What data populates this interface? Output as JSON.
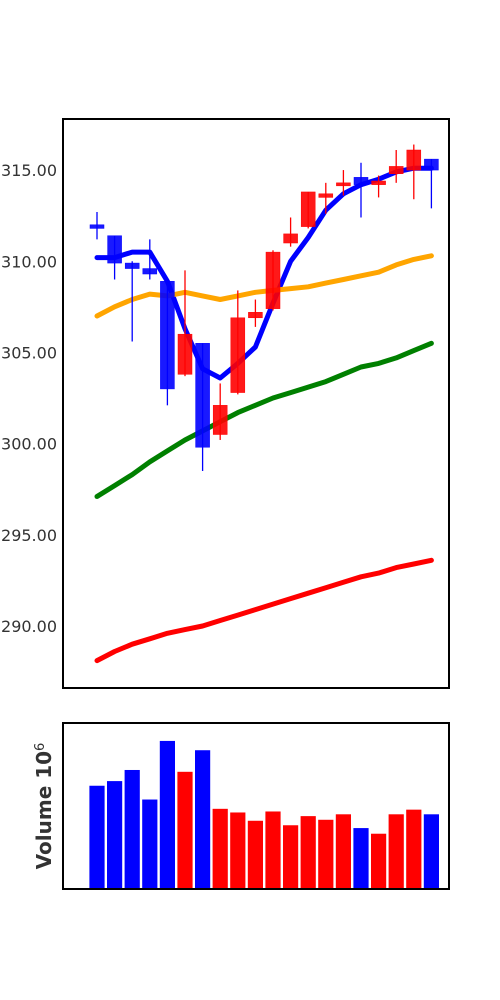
{
  "chart_data": [
    {
      "type": "candlestick",
      "ylim": [
        286.6,
        317.8
      ],
      "yticks": [
        290,
        295,
        300,
        305,
        310,
        315
      ],
      "ytick_labels": [
        "290.00",
        "295.00",
        "300.00",
        "305.00",
        "310.00",
        "315.00"
      ],
      "grid": false,
      "colors": {
        "up": "#ff0000",
        "down": "#0000ff"
      },
      "candles": [
        {
          "open": 312.0,
          "close": 311.8,
          "high": 312.7,
          "low": 311.2
        },
        {
          "open": 311.4,
          "close": 309.9,
          "high": 311.4,
          "low": 309.0
        },
        {
          "open": 309.9,
          "close": 309.6,
          "high": 310.0,
          "low": 305.6
        },
        {
          "open": 309.6,
          "close": 309.3,
          "high": 311.2,
          "low": 309.0
        },
        {
          "open": 308.9,
          "close": 303.0,
          "high": 308.9,
          "low": 302.1
        },
        {
          "open": 303.8,
          "close": 306.0,
          "high": 309.5,
          "low": 303.7
        },
        {
          "open": 305.5,
          "close": 299.8,
          "high": 305.5,
          "low": 298.5
        },
        {
          "open": 300.5,
          "close": 302.1,
          "high": 303.3,
          "low": 300.2
        },
        {
          "open": 302.8,
          "close": 306.9,
          "high": 308.4,
          "low": 302.7
        },
        {
          "open": 306.9,
          "close": 307.2,
          "high": 307.9,
          "low": 306.4
        },
        {
          "open": 307.4,
          "close": 310.5,
          "high": 310.6,
          "low": 307.3
        },
        {
          "open": 311.0,
          "close": 311.5,
          "high": 312.4,
          "low": 310.8
        },
        {
          "open": 311.9,
          "close": 313.8,
          "high": 313.8,
          "low": 311.8
        },
        {
          "open": 313.5,
          "close": 313.7,
          "high": 314.3,
          "low": 312.6
        },
        {
          "open": 314.2,
          "close": 314.3,
          "high": 315.0,
          "low": 313.6
        },
        {
          "open": 314.6,
          "close": 314.2,
          "high": 315.4,
          "low": 312.4
        },
        {
          "open": 314.2,
          "close": 314.4,
          "high": 314.7,
          "low": 313.5
        },
        {
          "open": 314.8,
          "close": 315.2,
          "high": 316.1,
          "low": 314.3
        },
        {
          "open": 315.0,
          "close": 316.1,
          "high": 316.4,
          "low": 313.4
        },
        {
          "open": 315.6,
          "close": 315.0,
          "high": 315.6,
          "low": 312.9
        }
      ],
      "lines": [
        {
          "color": "#0000ff",
          "values": [
            310.2,
            310.2,
            310.5,
            310.5,
            308.9,
            306.3,
            304.1,
            303.6,
            304.4,
            305.3,
            307.7,
            310.0,
            311.3,
            312.8,
            313.7,
            314.2,
            314.5,
            314.9,
            315.1,
            315.1
          ]
        },
        {
          "color": "#ffa500",
          "values": [
            307.0,
            307.5,
            307.9,
            308.2,
            308.1,
            308.3,
            308.1,
            307.9,
            308.1,
            308.3,
            308.4,
            308.5,
            308.6,
            308.8,
            309.0,
            309.2,
            309.4,
            309.8,
            310.1,
            310.3
          ]
        },
        {
          "color": "#008000",
          "values": [
            297.1,
            297.7,
            298.3,
            299.0,
            299.6,
            300.2,
            300.7,
            301.2,
            301.7,
            302.1,
            302.5,
            302.8,
            303.1,
            303.4,
            303.8,
            304.2,
            304.4,
            304.7,
            305.1,
            305.5
          ]
        },
        {
          "color": "#ff0000",
          "values": [
            288.1,
            288.6,
            289.0,
            289.3,
            289.6,
            289.8,
            290.0,
            290.3,
            290.6,
            290.9,
            291.2,
            291.5,
            291.8,
            292.1,
            292.4,
            292.7,
            292.9,
            293.2,
            293.4,
            293.6
          ]
        }
      ]
    },
    {
      "type": "bar",
      "ylabel": "Volume",
      "ylabel_exponent": "6",
      "ymax": 100,
      "colors": [
        "#0000ff",
        "#0000ff",
        "#0000ff",
        "#0000ff",
        "#0000ff",
        "#ff0000",
        "#0000ff",
        "#ff0000",
        "#ff0000",
        "#ff0000",
        "#ff0000",
        "#ff0000",
        "#ff0000",
        "#ff0000",
        "#ff0000",
        "#0000ff",
        "#ff0000",
        "#ff0000",
        "#ff0000",
        "#0000ff"
      ],
      "values": [
        62.2,
        65.0,
        71.7,
        53.9,
        89.2,
        70.6,
        83.6,
        48.3,
        46.1,
        41.1,
        46.7,
        38.4,
        43.9,
        41.7,
        45.0,
        36.7,
        33.3,
        45.0,
        47.8,
        45.0
      ]
    }
  ]
}
